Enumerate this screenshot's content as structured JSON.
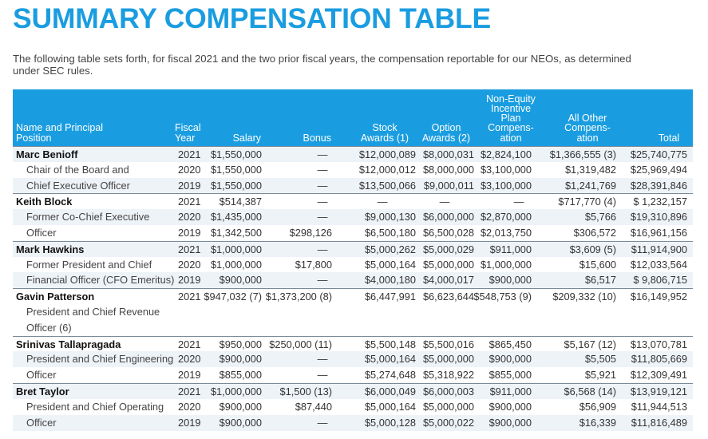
{
  "title": "SUMMARY COMPENSATION TABLE",
  "intro_line1": "The following table sets forth, for fiscal 2021 and the two prior fiscal years, the compensation reportable for our NEOs, as determined",
  "intro_line2": "under SEC rules.",
  "headers": {
    "name": [
      "Name and Principal",
      "Position"
    ],
    "year": [
      "Fiscal",
      "Year"
    ],
    "salary": [
      "Salary"
    ],
    "bonus": [
      "Bonus"
    ],
    "stock": [
      "Stock",
      "Awards (1)"
    ],
    "option": [
      "Option",
      "Awards (2)"
    ],
    "nonequity": [
      "Non-Equity",
      "Incentive",
      "Plan",
      "Compens-",
      "ation"
    ],
    "other": [
      "All Other",
      "Compens-",
      "ation"
    ],
    "total": [
      "Total"
    ]
  },
  "rows": [
    {
      "name": "Marc Benioff",
      "pos": "",
      "year": "2021",
      "salary": "$1,550,000",
      "bonus": "—",
      "stock": "$12,000,089",
      "option": "$8,000,031",
      "ne": "$2,824,100",
      "other": "$1,366,555 (3)",
      "total": "$25,740,775",
      "shade": true,
      "sep": true
    },
    {
      "name": "",
      "pos": "Chair of the Board and",
      "year": "2020",
      "salary": "$1,550,000",
      "bonus": "—",
      "stock": "$12,000,012",
      "option": "$8,000,000",
      "ne": "$3,100,000",
      "other": "$1,319,482",
      "total": "$25,969,494",
      "shade": false,
      "sep": false
    },
    {
      "name": "",
      "pos": "Chief Executive Officer",
      "year": "2019",
      "salary": "$1,550,000",
      "bonus": "—",
      "stock": "$13,500,066",
      "option": "$9,000,011",
      "ne": "$3,100,000",
      "other": "$1,241,769",
      "total": "$28,391,846",
      "shade": true,
      "sep": false
    },
    {
      "name": "Keith Block",
      "pos": "",
      "year": "2021",
      "salary": "$514,387",
      "bonus": "—",
      "stock": "—",
      "option": "—",
      "ne": "—",
      "other": "$717,770 (4)",
      "total": "$ 1,232,157",
      "shade": false,
      "sep": true
    },
    {
      "name": "",
      "pos": "Former Co-Chief Executive",
      "year": "2020",
      "salary": "$1,435,000",
      "bonus": "—",
      "stock": "$9,000,130",
      "option": "$6,000,000",
      "ne": "$2,870,000",
      "other": "$5,766",
      "total": "$19,310,896",
      "shade": true,
      "sep": false
    },
    {
      "name": "",
      "pos": "Officer",
      "year": "2019",
      "salary": "$1,342,500",
      "bonus": "$298,126",
      "stock": "$6,500,180",
      "option": "$6,500,028",
      "ne": "$2,013,750",
      "other": "$306,572",
      "total": "$16,961,156",
      "shade": false,
      "sep": false
    },
    {
      "name": "Mark Hawkins",
      "pos": "",
      "year": "2021",
      "salary": "$1,000,000",
      "bonus": "—",
      "stock": "$5,000,262",
      "option": "$5,000,029",
      "ne": "$911,000",
      "other": "$3,609 (5)",
      "total": "$11,914,900",
      "shade": true,
      "sep": true
    },
    {
      "name": "",
      "pos": "Former President and Chief",
      "year": "2020",
      "salary": "$1,000,000",
      "bonus": "$17,800",
      "stock": "$5,000,164",
      "option": "$5,000,000",
      "ne": "$1,000,000",
      "other": "$15,600",
      "total": "$12,033,564",
      "shade": false,
      "sep": false
    },
    {
      "name": "",
      "pos": "Financial Officer (CFO Emeritus)",
      "year": "2019",
      "salary": "$900,000",
      "bonus": "—",
      "stock": "$4,000,180",
      "option": "$4,000,017",
      "ne": "$900,000",
      "other": "$6,517",
      "total": "$ 9,806,715",
      "shade": true,
      "sep": false
    },
    {
      "name": "Gavin Patterson",
      "pos": "",
      "year": "2021",
      "salary": "$947,032 (7)",
      "bonus": "$1,373,200 (8)",
      "stock": "$6,447,991",
      "option": "$6,623,644",
      "ne": "$548,753 (9)",
      "other": "$209,332 (10)",
      "total": "$16,149,952",
      "shade": false,
      "sep": true
    },
    {
      "name": "",
      "pos": "President and Chief Revenue",
      "year": "",
      "salary": "",
      "bonus": "",
      "stock": "",
      "option": "",
      "ne": "",
      "other": "",
      "total": "",
      "shade": false,
      "sep": false
    },
    {
      "name": "",
      "pos": "Officer (6)",
      "year": "",
      "salary": "",
      "bonus": "",
      "stock": "",
      "option": "",
      "ne": "",
      "other": "",
      "total": "",
      "shade": false,
      "sep": false
    },
    {
      "name": "Srinivas Tallapragada",
      "pos": "",
      "year": "2021",
      "salary": "$950,000",
      "bonus": "$250,000 (11)",
      "stock": "$5,500,148",
      "option": "$5,500,016",
      "ne": "$865,450",
      "other": "$5,167 (12)",
      "total": "$13,070,781",
      "shade": false,
      "sep": true
    },
    {
      "name": "",
      "pos": "President and Chief Engineering",
      "year": "2020",
      "salary": "$900,000",
      "bonus": "—",
      "stock": "$5,000,164",
      "option": "$5,000,000",
      "ne": "$900,000",
      "other": "$5,505",
      "total": "$11,805,669",
      "shade": true,
      "sep": false
    },
    {
      "name": "",
      "pos": "Officer",
      "year": "2019",
      "salary": "$855,000",
      "bonus": "—",
      "stock": "$5,274,648",
      "option": "$5,318,922",
      "ne": "$855,000",
      "other": "$5,921",
      "total": "$12,309,491",
      "shade": false,
      "sep": false
    },
    {
      "name": "Bret Taylor",
      "pos": "",
      "year": "2021",
      "salary": "$1,000,000",
      "bonus": "$1,500 (13)",
      "stock": "$6,000,049",
      "option": "$6,000,003",
      "ne": "$911,000",
      "other": "$6,568 (14)",
      "total": "$13,919,121",
      "shade": true,
      "sep": true
    },
    {
      "name": "",
      "pos": "President and Chief Operating",
      "year": "2020",
      "salary": "$900,000",
      "bonus": "$87,440",
      "stock": "$5,000,164",
      "option": "$5,000,000",
      "ne": "$900,000",
      "other": "$56,909",
      "total": "$11,944,513",
      "shade": false,
      "sep": false
    },
    {
      "name": "",
      "pos": "Officer",
      "year": "2019",
      "salary": "$900,000",
      "bonus": "—",
      "stock": "$5,000,128",
      "option": "$5,000,022",
      "ne": "$900,000",
      "other": "$16,339",
      "total": "$11,816,489",
      "shade": true,
      "sep": false
    }
  ]
}
